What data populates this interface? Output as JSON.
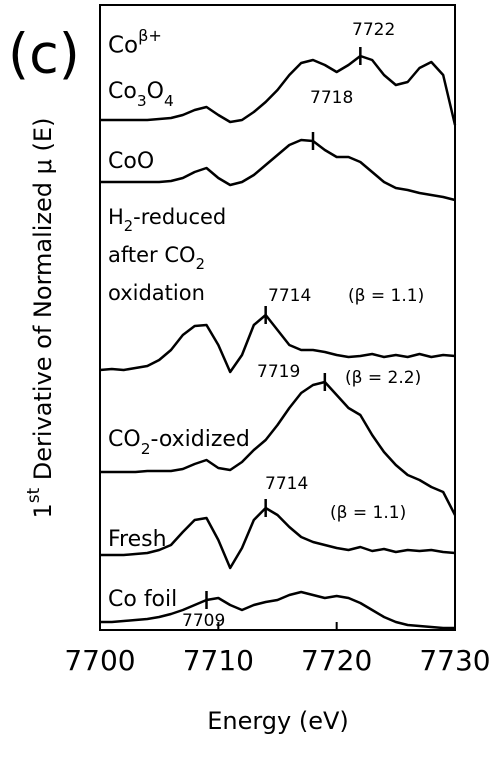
{
  "chart_data": {
    "type": "line",
    "panel_label": "(c)",
    "top_label": "Coβ+",
    "x_label": "Energy (eV)",
    "y_label": "1st Derivative of Normalized μ (E)",
    "x": [
      7700,
      7701,
      7702,
      7703,
      7704,
      7705,
      7706,
      7707,
      7708,
      7709,
      7710,
      7711,
      7712,
      7713,
      7714,
      7715,
      7716,
      7717,
      7718,
      7719,
      7720,
      7721,
      7722,
      7723,
      7724,
      7725,
      7726,
      7727,
      7728,
      7729,
      7730
    ],
    "series": [
      {
        "name": "Co3O4",
        "color": "#000000",
        "values": [
          510,
          510,
          510,
          510,
          510,
          511,
          512,
          515,
          520,
          523,
          515,
          508,
          510,
          518,
          528,
          540,
          555,
          567,
          570,
          565,
          558,
          565,
          574,
          570,
          555,
          545,
          548,
          562,
          568,
          555,
          505
        ]
      },
      {
        "name": "CoO",
        "color": "#000000",
        "values": [
          448,
          448,
          448,
          448,
          448,
          448,
          449,
          452,
          458,
          462,
          452,
          445,
          448,
          455,
          465,
          475,
          485,
          490,
          489,
          480,
          473,
          473,
          468,
          458,
          448,
          442,
          440,
          437,
          435,
          433,
          430
        ]
      },
      {
        "name": "H2-reduced after CO2 oxidation",
        "color": "#000000",
        "values": [
          260,
          261,
          260,
          262,
          264,
          270,
          280,
          295,
          304,
          305,
          285,
          258,
          275,
          305,
          315,
          300,
          285,
          280,
          280,
          278,
          275,
          273,
          274,
          276,
          273,
          275,
          273,
          276,
          273,
          275,
          274
        ]
      },
      {
        "name": "CO2-oxidized",
        "color": "#000000",
        "values": [
          158,
          158,
          158,
          158,
          159,
          159,
          159,
          161,
          166,
          170,
          162,
          160,
          168,
          180,
          190,
          205,
          222,
          237,
          245,
          248,
          235,
          222,
          215,
          195,
          178,
          165,
          155,
          150,
          143,
          138,
          115
        ]
      },
      {
        "name": "Fresh",
        "color": "#000000",
        "values": [
          75,
          75,
          75,
          76,
          77,
          80,
          85,
          98,
          110,
          112,
          90,
          62,
          82,
          110,
          122,
          115,
          103,
          93,
          88,
          85,
          82,
          80,
          83,
          79,
          81,
          78,
          80,
          79,
          80,
          78,
          77
        ]
      },
      {
        "name": "Co foil",
        "color": "#000000",
        "values": [
          8,
          8,
          9,
          10,
          11,
          13,
          16,
          20,
          25,
          30,
          32,
          25,
          20,
          25,
          28,
          30,
          35,
          38,
          35,
          32,
          34,
          32,
          27,
          20,
          13,
          8,
          5,
          4,
          3,
          2,
          2
        ]
      }
    ],
    "annotations": [
      {
        "x": 7722,
        "y": 574
      },
      {
        "x": 7718,
        "y": 489
      },
      {
        "x": 7714,
        "y": 315,
        "note": "(β = 1.1)"
      },
      {
        "x": 7719,
        "y": 248,
        "note": "(β = 2.2)"
      },
      {
        "x": 7714,
        "y": 122,
        "note": "(β = 1.1)"
      },
      {
        "x": 7709,
        "y": 30
      }
    ],
    "xlim": [
      7700,
      7730
    ],
    "xticks": [
      7700,
      7710,
      7720,
      7730
    ],
    "ylim": [
      0,
      625
    ],
    "grid": false
  }
}
